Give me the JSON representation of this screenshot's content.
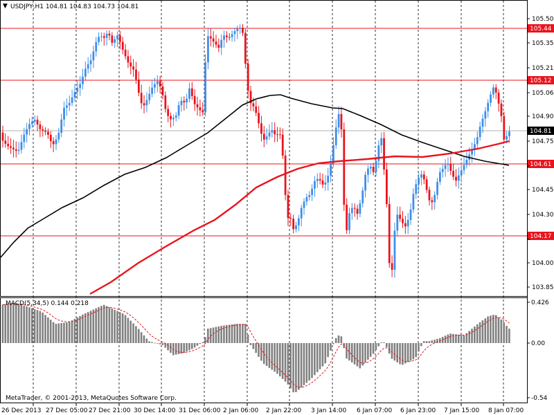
{
  "window": {
    "symbol_header": "USDJPY,H1  104.81 104.83 104.73 104.81",
    "macd_header": "MACD(5,34,5) 0.144 0.218",
    "copyright": "MetaTrader, © 2001-2013, MetaQuotes Software Corp."
  },
  "colors": {
    "background": "#ffffff",
    "bull_candle": "#3f8ee8",
    "bear_candle": "#e8141d",
    "sma_fast": "#e8141d",
    "sma_slow": "#000000",
    "grid": "#000000",
    "level_line": "#e8141d",
    "macd_hist": "#808080",
    "macd_signal": "#e8141d",
    "price_tag_bg": "#000000"
  },
  "chart_data": [
    {
      "type": "candlestick",
      "title": "USDJPY,H1",
      "ohlc_header": {
        "open": 104.81,
        "high": 104.83,
        "low": 104.73,
        "close": 104.81
      },
      "ylim": [
        103.78,
        105.58
      ],
      "y_ticks": [
        "105.50",
        "105.35",
        "105.21",
        "105.06",
        "104.90",
        "104.75",
        "104.60",
        "104.45",
        "104.30",
        "104.15",
        "104.00",
        "103.85"
      ],
      "x_labels": [
        "26 Dec 2013",
        "27 Dec 05:00",
        "27 Dec 21:00",
        "30 Dec 14:00",
        "31 Dec 06:00",
        "2 Jan 06:00",
        "2 Jan 22:00",
        "3 Jan 14:00",
        "6 Jan 07:00",
        "6 Jan 23:00",
        "7 Jan 15:00",
        "8 Jan 07:00"
      ],
      "current_price": "104.81",
      "horizontal_levels": [
        "105.44",
        "105.12",
        "104.61",
        "104.17"
      ],
      "moving_averages": [
        "red",
        "black"
      ],
      "grid": "dashed vertical"
    },
    {
      "type": "bar",
      "title": "MACD(5,34,5)",
      "values_shown": {
        "main": 0.144,
        "signal": 0.218
      },
      "ylim": [
        -0.54,
        0.426
      ],
      "y_ticks": [
        "0.426",
        "0.00",
        "-0.54"
      ]
    }
  ]
}
